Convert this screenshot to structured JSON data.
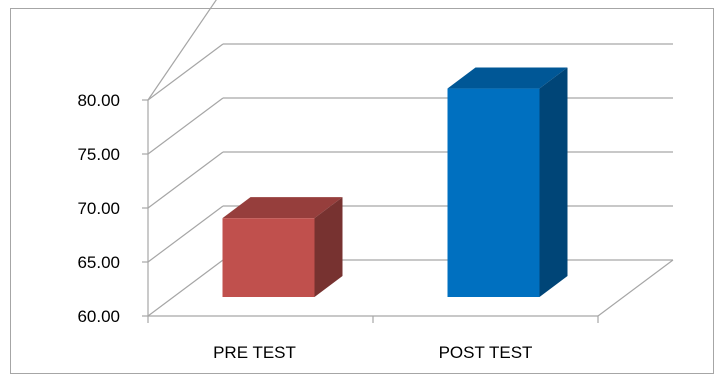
{
  "chart_data": {
    "type": "bar",
    "categories": [
      "PRE TEST",
      "POST TEST"
    ],
    "values": [
      67.3,
      79.3
    ],
    "colors": [
      "#c0504d",
      "#0070c0"
    ],
    "yticks": [
      "60.00",
      "65.00",
      "70.00",
      "75.00",
      "80.00"
    ],
    "ylim": [
      60,
      85
    ],
    "grid": true,
    "style": "3d-column"
  }
}
